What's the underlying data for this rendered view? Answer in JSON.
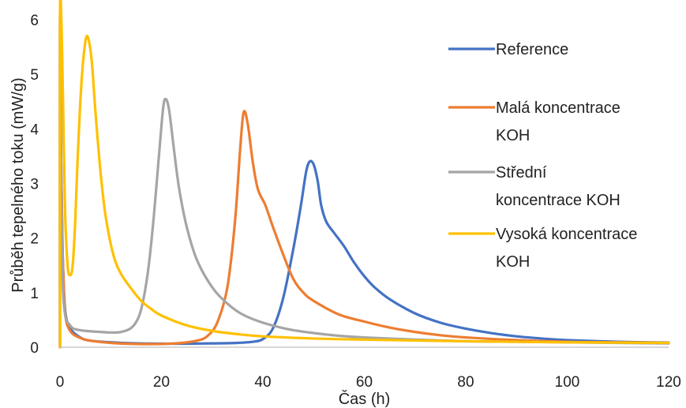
{
  "chart_data": {
    "type": "line",
    "title": "",
    "xlabel": "Čas (h)",
    "ylabel": "Průběh tepelného toku (mW/g)",
    "xlim": [
      0,
      120
    ],
    "ylim": [
      0,
      6
    ],
    "xticks": [
      0,
      20,
      40,
      60,
      80,
      100,
      120
    ],
    "yticks": [
      0,
      1,
      2,
      3,
      4,
      5,
      6
    ],
    "grid": false,
    "legend_position": "right",
    "series": [
      {
        "name": "Reference",
        "color": "#4472C4",
        "points": [
          [
            0,
            6
          ],
          [
            0.2,
            3.5
          ],
          [
            0.5,
            1.8
          ],
          [
            1,
            0.7
          ],
          [
            2,
            0.35
          ],
          [
            4,
            0.18
          ],
          [
            6,
            0.12
          ],
          [
            10,
            0.09
          ],
          [
            15,
            0.07
          ],
          [
            20,
            0.065
          ],
          [
            25,
            0.065
          ],
          [
            30,
            0.07
          ],
          [
            35,
            0.08
          ],
          [
            38,
            0.1
          ],
          [
            40,
            0.15
          ],
          [
            42,
            0.35
          ],
          [
            44,
            0.9
          ],
          [
            46,
            1.8
          ],
          [
            47.5,
            2.6
          ],
          [
            48.5,
            3.2
          ],
          [
            49.2,
            3.4
          ],
          [
            50,
            3.35
          ],
          [
            50.8,
            3.05
          ],
          [
            51.5,
            2.6
          ],
          [
            52.5,
            2.3
          ],
          [
            54,
            2.1
          ],
          [
            56,
            1.85
          ],
          [
            58,
            1.55
          ],
          [
            60,
            1.3
          ],
          [
            62,
            1.1
          ],
          [
            65,
            0.88
          ],
          [
            70,
            0.62
          ],
          [
            75,
            0.45
          ],
          [
            80,
            0.34
          ],
          [
            85,
            0.26
          ],
          [
            90,
            0.2
          ],
          [
            95,
            0.16
          ],
          [
            100,
            0.13
          ],
          [
            110,
            0.1
          ],
          [
            120,
            0.085
          ]
        ]
      },
      {
        "name": "Malá koncentrace KOH",
        "color": "#ED7D31",
        "points": [
          [
            0,
            6
          ],
          [
            0.2,
            3.5
          ],
          [
            0.5,
            1.8
          ],
          [
            1,
            0.65
          ],
          [
            2,
            0.3
          ],
          [
            4,
            0.17
          ],
          [
            6,
            0.12
          ],
          [
            10,
            0.08
          ],
          [
            15,
            0.06
          ],
          [
            20,
            0.06
          ],
          [
            24,
            0.08
          ],
          [
            27,
            0.12
          ],
          [
            29,
            0.2
          ],
          [
            31,
            0.45
          ],
          [
            33,
            1.1
          ],
          [
            34.5,
            2.3
          ],
          [
            35.5,
            3.6
          ],
          [
            36.2,
            4.3
          ],
          [
            37,
            4.1
          ],
          [
            38,
            3.4
          ],
          [
            39,
            2.9
          ],
          [
            40.5,
            2.6
          ],
          [
            42,
            2.2
          ],
          [
            44,
            1.7
          ],
          [
            46,
            1.25
          ],
          [
            48,
            1.0
          ],
          [
            50,
            0.85
          ],
          [
            55,
            0.6
          ],
          [
            60,
            0.47
          ],
          [
            65,
            0.36
          ],
          [
            70,
            0.28
          ],
          [
            75,
            0.22
          ],
          [
            80,
            0.18
          ],
          [
            90,
            0.13
          ],
          [
            100,
            0.1
          ],
          [
            110,
            0.09
          ],
          [
            120,
            0.08
          ]
        ]
      },
      {
        "name": "Střední koncentrace KOH",
        "color": "#A5A5A5",
        "points": [
          [
            0,
            6
          ],
          [
            0.2,
            3.2
          ],
          [
            0.5,
            1.3
          ],
          [
            1,
            0.6
          ],
          [
            2,
            0.4
          ],
          [
            3,
            0.33
          ],
          [
            5,
            0.3
          ],
          [
            8,
            0.28
          ],
          [
            10,
            0.27
          ],
          [
            12,
            0.28
          ],
          [
            14,
            0.35
          ],
          [
            15.5,
            0.55
          ],
          [
            16.5,
            0.9
          ],
          [
            17.5,
            1.5
          ],
          [
            18.5,
            2.4
          ],
          [
            19.5,
            3.5
          ],
          [
            20.3,
            4.35
          ],
          [
            20.8,
            4.55
          ],
          [
            21.5,
            4.35
          ],
          [
            22.5,
            3.6
          ],
          [
            23.5,
            2.9
          ],
          [
            25,
            2.2
          ],
          [
            27,
            1.6
          ],
          [
            30,
            1.1
          ],
          [
            33,
            0.8
          ],
          [
            36,
            0.6
          ],
          [
            40,
            0.45
          ],
          [
            45,
            0.33
          ],
          [
            50,
            0.26
          ],
          [
            55,
            0.21
          ],
          [
            60,
            0.18
          ],
          [
            70,
            0.14
          ],
          [
            80,
            0.11
          ],
          [
            90,
            0.1
          ],
          [
            100,
            0.09
          ],
          [
            110,
            0.08
          ],
          [
            120,
            0.07
          ]
        ]
      },
      {
        "name": "Vysoká koncentrace KOH",
        "color": "#FFC000",
        "points": [
          [
            0,
            6
          ],
          [
            0.3,
            5.9
          ],
          [
            0.6,
            4.5
          ],
          [
            1,
            2.5
          ],
          [
            1.5,
            1.5
          ],
          [
            2,
            1.32
          ],
          [
            2.5,
            1.5
          ],
          [
            3,
            2.3
          ],
          [
            3.5,
            3.5
          ],
          [
            4.2,
            4.8
          ],
          [
            5,
            5.6
          ],
          [
            5.6,
            5.65
          ],
          [
            6.3,
            5.2
          ],
          [
            7,
            4.3
          ],
          [
            8,
            3.2
          ],
          [
            9,
            2.4
          ],
          [
            10.5,
            1.7
          ],
          [
            12,
            1.35
          ],
          [
            14,
            1.08
          ],
          [
            16,
            0.85
          ],
          [
            18,
            0.7
          ],
          [
            20,
            0.58
          ],
          [
            25,
            0.4
          ],
          [
            30,
            0.3
          ],
          [
            35,
            0.24
          ],
          [
            40,
            0.2
          ],
          [
            50,
            0.16
          ],
          [
            60,
            0.14
          ],
          [
            80,
            0.11
          ],
          [
            100,
            0.09
          ],
          [
            120,
            0.08
          ]
        ]
      }
    ],
    "legend": [
      {
        "lines": [
          "Reference"
        ],
        "color": "#4472C4"
      },
      {
        "lines": [
          "Malá koncentrace",
          "KOH"
        ],
        "color": "#ED7D31"
      },
      {
        "lines": [
          "Střední",
          "koncentrace KOH"
        ],
        "color": "#A5A5A5"
      },
      {
        "lines": [
          "Vysoká koncentrace",
          "KOH"
        ],
        "color": "#FFC000"
      }
    ]
  }
}
